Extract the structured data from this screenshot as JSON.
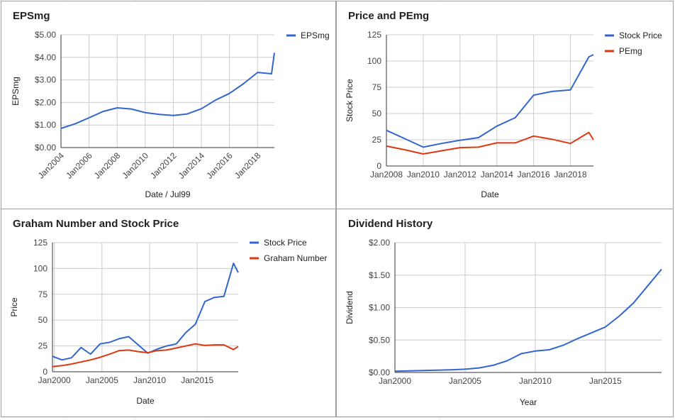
{
  "colors": {
    "blue": "#3366cc",
    "red": "#dc3912",
    "grid": "#cccccc",
    "axis": "#333333"
  },
  "charts": [
    {
      "id": "eps",
      "chart_data": {
        "type": "line",
        "title": "EPSmg",
        "xlabel": "Date / Jul99",
        "ylabel": "EPSmg",
        "x_domain": [
          2004,
          2019.2
        ],
        "xticks": [
          2004,
          2006,
          2008,
          2010,
          2012,
          2014,
          2016,
          2018
        ],
        "xtick_labels": [
          "Jan2004",
          "Jan2006",
          "Jan2008",
          "Jan2010",
          "Jan2012",
          "Jan2014",
          "Jan2016",
          "Jan2018"
        ],
        "xtick_rotated": true,
        "ylim": [
          0,
          5
        ],
        "yticks": [
          0,
          1,
          2,
          3,
          4,
          5
        ],
        "ytick_labels": [
          "$0.00",
          "$1.00",
          "$2.00",
          "$3.00",
          "$4.00",
          "$5.00"
        ],
        "grid": true,
        "legend": "right",
        "series": [
          {
            "name": "EPSmg",
            "color": "#3366cc",
            "x": [
              2004,
              2005,
              2006,
              2007,
              2008,
              2009,
              2010,
              2011,
              2012,
              2013,
              2014,
              2015,
              2016,
              2017,
              2018,
              2019,
              2019.2
            ],
            "y": [
              0.85,
              1.05,
              1.32,
              1.6,
              1.76,
              1.71,
              1.55,
              1.47,
              1.42,
              1.49,
              1.72,
              2.1,
              2.4,
              2.83,
              3.33,
              3.27,
              4.2
            ]
          }
        ]
      }
    },
    {
      "id": "pe",
      "chart_data": {
        "type": "line",
        "title": "Price and PEmg",
        "xlabel": "Date",
        "ylabel": "Stock Price",
        "x_domain": [
          2008,
          2019.25
        ],
        "xticks": [
          2008,
          2010,
          2012,
          2014,
          2016,
          2018
        ],
        "xtick_labels": [
          "Jan2008",
          "Jan2010",
          "Jan2012",
          "Jan2014",
          "Jan2016",
          "Jan2018"
        ],
        "xtick_rotated": false,
        "ylim": [
          0,
          125
        ],
        "yticks": [
          0,
          25,
          50,
          75,
          100,
          125
        ],
        "ytick_labels": [
          "0",
          "25",
          "50",
          "75",
          "100",
          "125"
        ],
        "grid": true,
        "legend": "right",
        "series": [
          {
            "name": "Stock Price",
            "color": "#3366cc",
            "x": [
              2008,
              2009,
              2010,
              2011,
              2012,
              2013,
              2014,
              2015,
              2016,
              2017,
              2018,
              2019,
              2019.25
            ],
            "y": [
              34,
              26,
              18,
              21.5,
              24.5,
              27,
              38,
              46,
              67.5,
              71,
              72.5,
              104,
              106
            ]
          },
          {
            "name": "PEmg",
            "color": "#dc3912",
            "x": [
              2008,
              2009,
              2010,
              2011,
              2012,
              2013,
              2014,
              2015,
              2016,
              2017,
              2018,
              2019,
              2019.25
            ],
            "y": [
              19,
              15.5,
              11.5,
              14.5,
              17.5,
              18,
              22,
              22,
              28.5,
              25.5,
              21.5,
              32,
              25
            ]
          }
        ]
      }
    },
    {
      "id": "graham",
      "chart_data": {
        "type": "line",
        "title": "Graham Number and Stock Price",
        "xlabel": "Date",
        "ylabel": "Price",
        "x_domain": [
          1999.8,
          2019.3
        ],
        "xticks": [
          2000,
          2005,
          2010,
          2015
        ],
        "xtick_labels": [
          "Jan2000",
          "Jan2005",
          "Jan2010",
          "Jan2015"
        ],
        "xtick_rotated": false,
        "ylim": [
          0,
          125
        ],
        "yticks": [
          0,
          25,
          50,
          75,
          100,
          125
        ],
        "ytick_labels": [
          "0",
          "25",
          "50",
          "75",
          "100",
          "125"
        ],
        "grid": true,
        "legend": "right",
        "series": [
          {
            "name": "Stock Price",
            "color": "#3366cc",
            "x": [
              1999.8,
              2000.8,
              2001.8,
              2002.8,
              2003.8,
              2004.8,
              2005.8,
              2006.8,
              2007.8,
              2008.8,
              2009.8,
              2010.8,
              2011.8,
              2012.8,
              2013.8,
              2014.8,
              2015.8,
              2016.8,
              2017.8,
              2018.8,
              2019.3
            ],
            "y": [
              15,
              11.5,
              13.5,
              23.5,
              17,
              27,
              28.5,
              32,
              34,
              26,
              18,
              22,
              25,
              27,
              38,
              46,
              68,
              72,
              73,
              105,
              96
            ]
          },
          {
            "name": "Graham Number",
            "color": "#dc3912",
            "x": [
              1999.8,
              2000.8,
              2001.8,
              2002.8,
              2003.8,
              2004.8,
              2005.8,
              2006.8,
              2007.8,
              2008.8,
              2009.8,
              2010.8,
              2011.8,
              2012.8,
              2013.8,
              2014.8,
              2015.8,
              2016.8,
              2017.8,
              2018.8,
              2019.3
            ],
            "y": [
              5,
              6,
              7.5,
              9.5,
              11.5,
              14,
              17,
              20.5,
              21,
              19.5,
              18.5,
              20.5,
              21,
              23,
              25,
              27,
              25.5,
              26,
              26,
              21.5,
              24.5
            ]
          }
        ]
      }
    },
    {
      "id": "dividend",
      "chart_data": {
        "type": "line",
        "title": "Dividend History",
        "xlabel": "Year",
        "ylabel": "Dividend",
        "x_domain": [
          2000,
          2019
        ],
        "xticks": [
          2000,
          2005,
          2010,
          2015
        ],
        "xtick_labels": [
          "Jan2000",
          "Jan2005",
          "Jan2010",
          "Jan2015"
        ],
        "xtick_rotated": false,
        "ylim": [
          0,
          2
        ],
        "yticks": [
          0,
          0.5,
          1,
          1.5,
          2
        ],
        "ytick_labels": [
          "$0.00",
          "$0.50",
          "$1.00",
          "$1.50",
          "$2.00"
        ],
        "grid": true,
        "legend": "none",
        "series": [
          {
            "name": "",
            "color": "#3366cc",
            "x": [
              2000,
              2001,
              2002,
              2003,
              2004,
              2005,
              2006,
              2007,
              2008,
              2009,
              2010,
              2011,
              2012,
              2013,
              2014,
              2015,
              2016,
              2017,
              2018,
              2019
            ],
            "y": [
              0.02,
              0.025,
              0.03,
              0.035,
              0.04,
              0.05,
              0.07,
              0.11,
              0.18,
              0.29,
              0.33,
              0.35,
              0.42,
              0.52,
              0.61,
              0.7,
              0.87,
              1.07,
              1.33,
              1.59
            ]
          }
        ]
      }
    }
  ]
}
